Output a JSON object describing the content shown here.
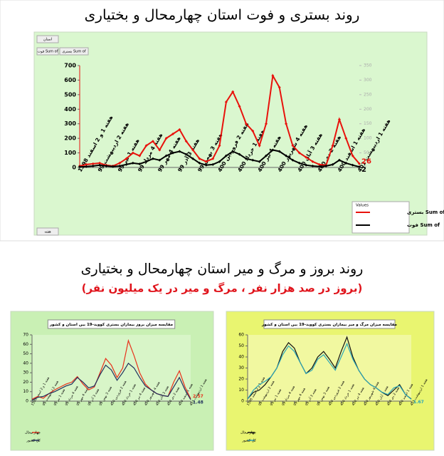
{
  "chart_data": [
    {
      "type": "line",
      "title": "روند بستری و فوت استان چهارمحال و بختیاری",
      "pivot_buttons": [
        "استان",
        "Sum of فوت",
        "Sum of بستری",
        "هفته"
      ],
      "legend_title": "Values",
      "categories": [
        "هفته 1 و 2 اسفند 1398",
        null,
        null,
        "هفته 2 اردیبهشت 99",
        null,
        null,
        "هفته 1 تیر 99",
        null,
        null,
        "هفته 4 مرداد 99",
        null,
        null,
        "هفته 4 مهر 99",
        null,
        null,
        "هفته 3 آذر 99",
        null,
        null,
        "هفته 3 بهمن 99",
        null,
        null,
        "هفته 2 فروردین 400",
        null,
        null,
        "هفته 1 خرداد 400",
        null,
        null,
        "هفته 4 تیر 400",
        null,
        null,
        "هفته 4 شهریور 400",
        null,
        null,
        "هفته 3 آبان 400",
        null,
        null,
        "هفته 2 دی 400",
        null,
        null,
        "هفته 1 اسفند 400",
        null,
        null,
        "هفته 1 اردیبهشت 401"
      ],
      "ylim": [
        0,
        700
      ],
      "yticks": [
        0,
        100,
        200,
        300,
        400,
        500,
        600,
        700
      ],
      "y2lim": [
        0,
        350
      ],
      "y2ticks": [
        0,
        50,
        100,
        150,
        200,
        250,
        300,
        350
      ],
      "series": [
        {
          "name": "Sum of بستری",
          "color": "#e8120c",
          "markers": true,
          "show_last_label": true,
          "values": [
            10,
            20,
            25,
            30,
            15,
            10,
            30,
            60,
            100,
            80,
            150,
            180,
            120,
            200,
            230,
            260,
            180,
            120,
            60,
            40,
            60,
            150,
            450,
            520,
            420,
            300,
            250,
            150,
            300,
            630,
            550,
            300,
            150,
            100,
            70,
            40,
            20,
            15,
            150,
            330,
            200,
            80,
            26
          ]
        },
        {
          "name": "Sum of فوت",
          "color": "#000000",
          "axis": "y2",
          "markers": true,
          "show_last_label": true,
          "values": [
            2,
            3,
            5,
            8,
            5,
            3,
            5,
            10,
            15,
            12,
            20,
            30,
            25,
            40,
            50,
            55,
            45,
            30,
            15,
            8,
            10,
            20,
            40,
            55,
            45,
            30,
            25,
            20,
            40,
            60,
            55,
            40,
            25,
            15,
            8,
            5,
            3,
            5,
            10,
            25,
            15,
            8,
            2
          ]
        }
      ]
    },
    {
      "type": "line",
      "title": "مقایسه میزان بروز بیماران بستری کووید-19 بین استان و کشور",
      "categories": [
        "هفته 1 و 2 اسفند 1398",
        null,
        "هفته 2 اردیبهشت 99",
        null,
        "هفته 1 تیر 99",
        null,
        "هفته 4 مرداد 99",
        null,
        "هفته 4 مهر 99",
        null,
        "هفته 3 آذر 99",
        null,
        "هفته 3 بهمن 99",
        null,
        "هفته 2 فروردین 400",
        null,
        "هفته 1 خرداد 400",
        null,
        "هفته 4 تیر 400",
        null,
        "هفته 4 شهریور 400",
        null,
        "هفته 3 آبان 400",
        null,
        "هفته 2 دی 400",
        null,
        "هفته 1 اسفند 400",
        null,
        "هفته 1 اردیبهشت 401"
      ],
      "ylim": [
        0,
        70
      ],
      "yticks": [
        0,
        10,
        20,
        30,
        40,
        50,
        60,
        70
      ],
      "series": [
        {
          "name": "چهار محال",
          "color": "#e8321c",
          "show_last_label": true,
          "values": [
            2,
            5,
            3,
            8,
            12,
            15,
            18,
            20,
            26,
            18,
            12,
            15,
            30,
            45,
            38,
            25,
            35,
            64,
            48,
            30,
            18,
            12,
            8,
            6,
            5,
            20,
            32,
            15,
            2.57
          ]
        },
        {
          "name": "کل کشور",
          "color": "#1f2f5c",
          "show_last_label": true,
          "values": [
            1,
            4,
            5,
            8,
            10,
            13,
            16,
            18,
            25,
            20,
            14,
            16,
            28,
            38,
            33,
            22,
            30,
            40,
            35,
            25,
            16,
            12,
            8,
            6,
            5,
            15,
            25,
            12,
            1.48
          ]
        }
      ]
    },
    {
      "type": "line",
      "title": "مقایسه میزان مرگ و میر بیماران بستری کووید-19 بین استان و کشور",
      "categories": [
        "هفته 1 و 2 اسفند 1398",
        null,
        "هفته 2 اردیبهشت 99",
        null,
        "هفته 1 تیر 99",
        null,
        "هفته 4 مرداد 99",
        null,
        "هفته 4 مهر 99",
        null,
        "هفته 3 آذر 99",
        null,
        "هفته 3 بهمن 99",
        null,
        "هفته 2 فروردین 400",
        null,
        "هفته 1 خرداد 400",
        null,
        "هفته 4 تیر 400",
        null,
        "هفته 4 شهریور 400",
        null,
        "هفته 3 آبان 400",
        null,
        "هفته 2 دی 400",
        null,
        "هفته 1 اسفند 400",
        null,
        "هفته 1 اردیبهشت 401"
      ],
      "ylim": [
        0,
        60
      ],
      "yticks": [
        0,
        10,
        20,
        30,
        40,
        50,
        60
      ],
      "series": [
        {
          "name": "چهار محال",
          "color": "#111111",
          "show_last_label": false,
          "values": [
            2,
            8,
            10,
            15,
            22,
            30,
            45,
            53,
            48,
            35,
            25,
            30,
            40,
            45,
            38,
            30,
            45,
            58,
            40,
            28,
            20,
            15,
            12,
            8,
            5,
            10,
            15,
            6,
            2
          ]
        },
        {
          "name": "کل کشور",
          "color": "#2aa6b8",
          "show_last_label": true,
          "values": [
            2,
            10,
            15,
            18,
            22,
            30,
            42,
            50,
            45,
            35,
            25,
            28,
            38,
            42,
            35,
            28,
            40,
            52,
            38,
            28,
            20,
            15,
            12,
            8,
            6,
            12,
            14,
            6,
            1.67
          ]
        }
      ]
    }
  ],
  "section_title": "روند بروز و مرگ و میر استان چهارمحال و بختیاری",
  "section_subtitle": "(بروز در صد هزار نفر ، مرگ و میر در یک میلیون نفر)"
}
